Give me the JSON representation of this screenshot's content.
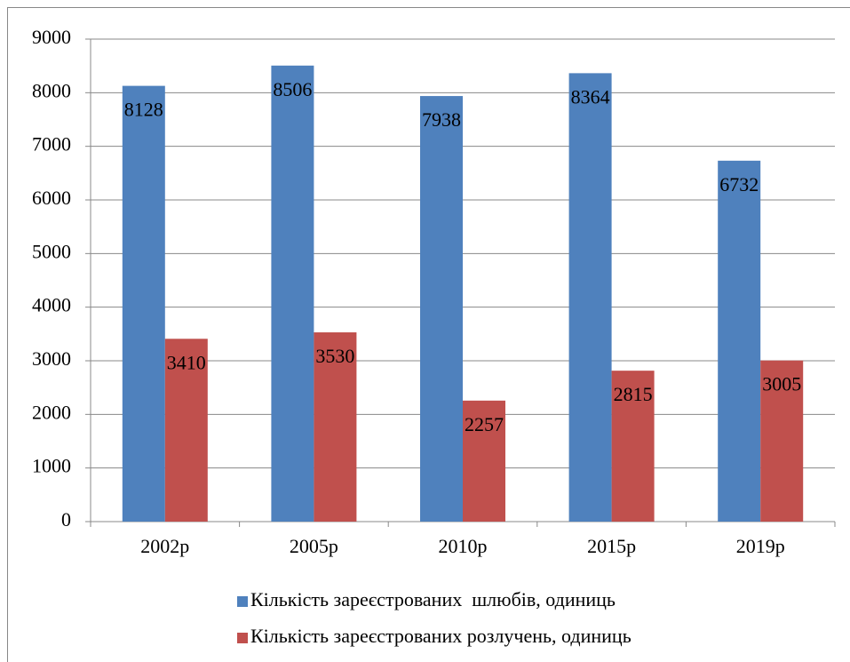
{
  "chart_data": {
    "type": "bar",
    "categories": [
      "2002р",
      "2005р",
      "2010р",
      "2015р",
      "2019р"
    ],
    "series": [
      {
        "name": "Кількість зареєстрованих  шлюбів, одиниць",
        "color": "#4f81bd",
        "values": [
          8128,
          8506,
          7938,
          8364,
          6732
        ]
      },
      {
        "name": "Кількість зареєстрованих розлучень, одиниць",
        "color": "#c0504d",
        "values": [
          3410,
          3530,
          2257,
          2815,
          3005
        ]
      }
    ],
    "ylim": [
      0,
      9000
    ],
    "yticks": [
      0,
      1000,
      2000,
      3000,
      4000,
      5000,
      6000,
      7000,
      8000,
      9000
    ],
    "grid": true,
    "legend": "bottom"
  }
}
